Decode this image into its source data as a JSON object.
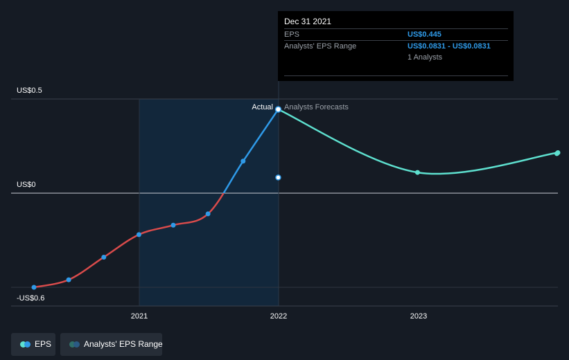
{
  "chart_data": {
    "type": "line",
    "y_axis_labels": [
      "US$0.5",
      "US$0",
      "-US$0.6"
    ],
    "x_ticks": [
      "2021",
      "2022",
      "2023"
    ],
    "ylim": [
      -0.6,
      0.5
    ],
    "marker_labels": {
      "actual": "Actual",
      "forecast": "Analysts Forecasts"
    },
    "series": [
      {
        "name": "EPS",
        "points": [
          {
            "x": "2020-03-31",
            "y": -0.5
          },
          {
            "x": "2020-06-30",
            "y": -0.46
          },
          {
            "x": "2020-09-30",
            "y": -0.34
          },
          {
            "x": "2020-12-31",
            "y": -0.22
          },
          {
            "x": "2021-03-31",
            "y": -0.17
          },
          {
            "x": "2021-06-30",
            "y": -0.11
          },
          {
            "x": "2021-09-30",
            "y": 0.17
          },
          {
            "x": "2021-12-31",
            "y": 0.445
          }
        ]
      },
      {
        "name": "Analysts Forecasts",
        "points": [
          {
            "x": "2021-12-31",
            "y": 0.445
          },
          {
            "x": "2022-12-31",
            "y": 0.11
          },
          {
            "x": "2023-12-31",
            "y": 0.21
          }
        ]
      },
      {
        "name": "Analysts' EPS Range",
        "points": [
          {
            "x": "2021-12-31",
            "y": 0.0831
          }
        ]
      }
    ],
    "colors": {
      "negative": "#d94b4b",
      "positive": "#2f9ae8",
      "forecast": "#5ee0cf",
      "range": "#2f9ae8"
    }
  },
  "tooltip": {
    "date": "Dec 31 2021",
    "eps_label": "EPS",
    "eps_value": "US$0.445",
    "range_label": "Analysts' EPS Range",
    "range_value": "US$0.0831 - US$0.0831",
    "analysts": "1 Analysts"
  },
  "legend": {
    "eps": "EPS",
    "range": "Analysts' EPS Range"
  }
}
